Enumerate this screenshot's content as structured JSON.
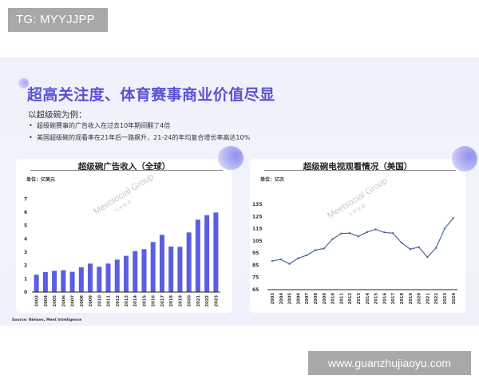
{
  "overlay": {
    "tg_label": "TG: MYYJJPP",
    "url_label": "www.guanzhujiaoyu.com"
  },
  "slide": {
    "title": "超高关注度、体育赛事商业价值尽显",
    "lead": "以超级碗为例：",
    "bullets": [
      "超级碗赛事的广告收入在过去10年期间翻了4倍",
      "美国超级碗的观看率在21年后一路飙升，21-24的年均复合增长率高达10%"
    ],
    "source": "Source: Nielsen, Meet Intelligence",
    "watermark": {
      "main": "Meetsocial Group",
      "sub": "飞 书 深 诺"
    },
    "colors": {
      "title": "#5a52d5",
      "bar": "#5b5ee1",
      "line": "#4a6896",
      "background": "#eef1fb"
    }
  },
  "chart_data": [
    {
      "type": "bar",
      "title": "超级碗广告收入（全球）",
      "unit_label": "单位：亿美元",
      "xlabel": "",
      "ylabel": "亿美元",
      "ylim": [
        0,
        7
      ],
      "yticks": [
        0,
        1,
        2,
        3,
        4,
        5,
        6,
        7
      ],
      "grid": false,
      "categories": [
        "2003",
        "2004",
        "2005",
        "2006",
        "2007",
        "2008",
        "2009",
        "2010",
        "2011",
        "2012",
        "2013",
        "2014",
        "2015",
        "2016",
        "2017",
        "2018",
        "2019",
        "2020",
        "2021",
        "2022",
        "2023"
      ],
      "values": [
        1.3,
        1.5,
        1.6,
        1.64,
        1.52,
        1.86,
        2.14,
        1.9,
        2.14,
        2.44,
        2.72,
        3.08,
        3.22,
        3.76,
        4.3,
        3.42,
        3.4,
        4.48,
        5.44,
        5.78,
        5.98
      ]
    },
    {
      "type": "line",
      "title": "超级碗电视观看情况（美国）",
      "unit_label": "单位：亿次",
      "xlabel": "",
      "ylabel": "亿次",
      "ylim": [
        65,
        135
      ],
      "yticks": [
        65,
        75,
        85,
        95,
        105,
        115,
        125,
        135
      ],
      "grid": false,
      "categories": [
        "2003",
        "2004",
        "2005",
        "2006",
        "2007",
        "2008",
        "2009",
        "2010",
        "2011",
        "2012",
        "2013",
        "2014",
        "2015",
        "2016",
        "2017",
        "2018",
        "2019",
        "2020",
        "2021",
        "2022",
        "2023",
        "2024"
      ],
      "values": [
        88.6,
        89.8,
        86.1,
        90.7,
        93.2,
        97.4,
        98.7,
        106.5,
        111.0,
        111.3,
        108.7,
        112.2,
        114.4,
        111.9,
        111.3,
        103.4,
        98.2,
        99.9,
        91.6,
        99.2,
        115.1,
        123.7
      ]
    }
  ]
}
